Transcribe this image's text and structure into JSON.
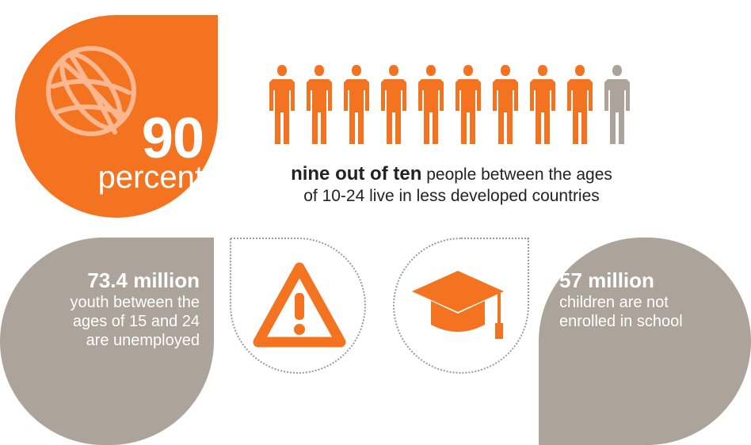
{
  "hero": {
    "icon": "globe-icon",
    "number": "90",
    "unit": "percent",
    "color": "#f47321"
  },
  "people": {
    "total": 10,
    "highlighted": 9,
    "highlight_color": "#f47321",
    "other_color": "#aca39b",
    "caption_strong": "nine out of ten",
    "caption_line1": "people between the ages",
    "caption_line2": "of 10-24 live in less developed countries"
  },
  "stat_left": {
    "value": "73.4 million",
    "line1": "youth between the",
    "line2": "ages of 15 and 24",
    "line3": "are unemployed",
    "color": "#aca39b"
  },
  "icons": {
    "warning": "warning-icon",
    "education": "graduation-cap-icon"
  },
  "stat_right": {
    "value": "57 million",
    "line1": "children are not",
    "line2": "enrolled in school",
    "color": "#aca39b"
  }
}
